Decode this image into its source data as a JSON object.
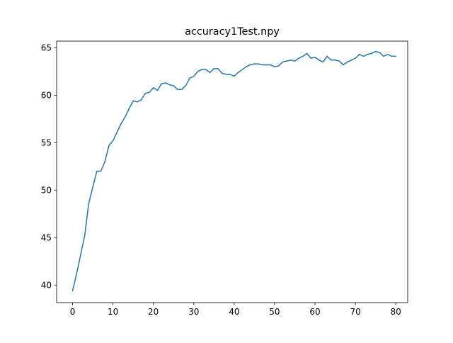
{
  "chart_data": {
    "type": "line",
    "title": "accuracy1Test.npy",
    "xlabel": "",
    "ylabel": "",
    "xlim": [
      -3.95,
      82.95
    ],
    "ylim": [
      38.15,
      65.7
    ],
    "xticks": [
      0,
      10,
      20,
      30,
      40,
      50,
      60,
      70,
      80
    ],
    "yticks": [
      40,
      45,
      50,
      55,
      60,
      65
    ],
    "grid": false,
    "line_color": "#1f77b4",
    "series": [
      {
        "values": [
          39.4,
          41.2,
          43.2,
          45.2,
          48.6,
          50.3,
          52.0,
          52.0,
          53.0,
          54.7,
          55.2,
          56.1,
          57.0,
          57.7,
          58.6,
          59.4,
          59.3,
          59.5,
          60.2,
          60.3,
          60.8,
          60.5,
          61.2,
          61.3,
          61.1,
          61.0,
          60.6,
          60.6,
          61.0,
          61.8,
          62.0,
          62.5,
          62.7,
          62.7,
          62.4,
          62.8,
          62.8,
          62.3,
          62.2,
          62.2,
          62.0,
          62.4,
          62.7,
          63.0,
          63.2,
          63.3,
          63.3,
          63.2,
          63.2,
          63.2,
          63.0,
          63.1,
          63.5,
          63.6,
          63.7,
          63.6,
          63.9,
          64.1,
          64.4,
          63.9,
          64.0,
          63.7,
          63.5,
          64.1,
          63.7,
          63.7,
          63.6,
          63.2,
          63.5,
          63.7,
          63.9,
          64.3,
          64.1,
          64.3,
          64.4,
          64.6,
          64.5,
          64.1,
          64.3,
          64.1,
          64.1
        ]
      }
    ]
  }
}
